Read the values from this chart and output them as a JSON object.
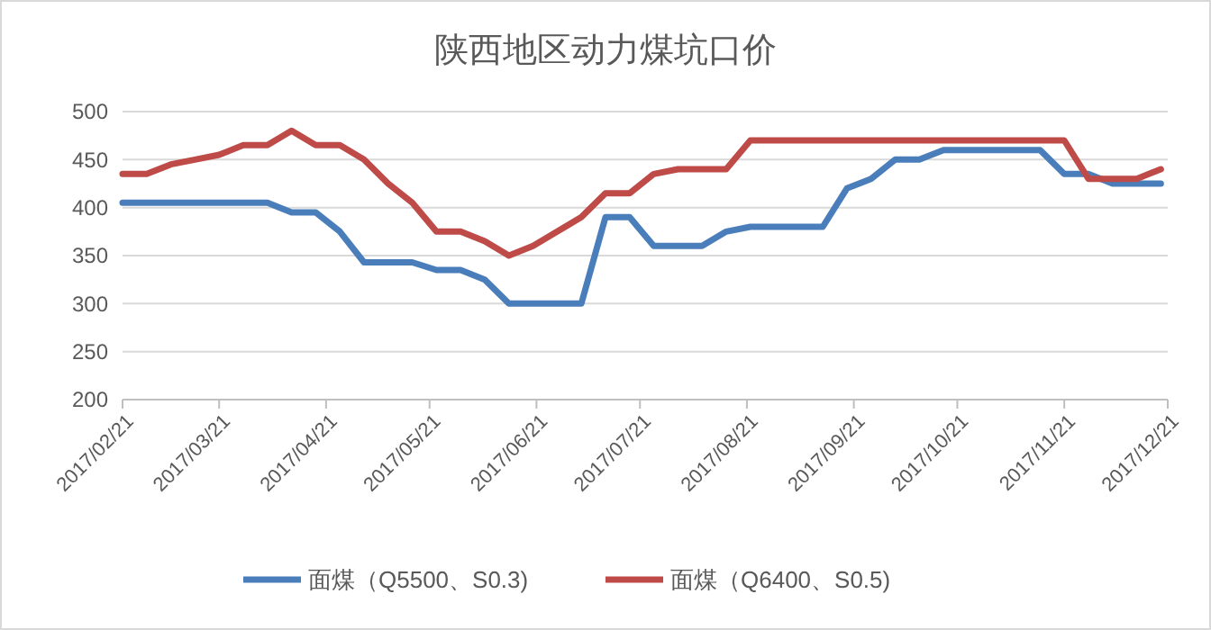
{
  "chart_data": {
    "type": "line",
    "title": "陕西地区动力煤坑口价",
    "x": [
      "2017-02-21",
      "2017-02-28",
      "2017-03-07",
      "2017-03-14",
      "2017-03-21",
      "2017-03-28",
      "2017-04-04",
      "2017-04-11",
      "2017-04-18",
      "2017-04-25",
      "2017-05-02",
      "2017-05-09",
      "2017-05-16",
      "2017-05-23",
      "2017-05-30",
      "2017-06-06",
      "2017-06-13",
      "2017-06-20",
      "2017-06-27",
      "2017-07-04",
      "2017-07-11",
      "2017-07-18",
      "2017-07-25",
      "2017-08-01",
      "2017-08-08",
      "2017-08-15",
      "2017-08-22",
      "2017-08-29",
      "2017-09-05",
      "2017-09-12",
      "2017-09-19",
      "2017-09-26",
      "2017-10-03",
      "2017-10-10",
      "2017-10-17",
      "2017-10-24",
      "2017-10-31",
      "2017-11-07",
      "2017-11-14",
      "2017-11-21",
      "2017-11-28",
      "2017-12-05",
      "2017-12-12",
      "2017-12-19"
    ],
    "series": [
      {
        "name": "面煤（Q5500、S0.3)",
        "color": "#4a7ebb",
        "values": [
          405,
          405,
          405,
          405,
          405,
          405,
          405,
          395,
          395,
          375,
          343,
          343,
          343,
          335,
          335,
          325,
          300,
          300,
          300,
          300,
          390,
          390,
          360,
          360,
          360,
          375,
          380,
          380,
          380,
          380,
          420,
          430,
          450,
          450,
          460,
          460,
          460,
          460,
          460,
          435,
          435,
          425,
          425,
          425
        ]
      },
      {
        "name": "面煤（Q6400、S0.5)",
        "color": "#be4b48",
        "values": [
          435,
          435,
          445,
          450,
          455,
          465,
          465,
          480,
          465,
          465,
          450,
          425,
          405,
          375,
          375,
          365,
          350,
          360,
          375,
          390,
          415,
          415,
          435,
          440,
          440,
          440,
          470,
          470,
          470,
          470,
          470,
          470,
          470,
          470,
          470,
          470,
          470,
          470,
          470,
          470,
          430,
          430,
          430,
          440
        ]
      }
    ],
    "xlim": [
      "2017-02-21",
      "2017-12-21"
    ],
    "xticks": [
      {
        "value": "2017-02-21",
        "label": "2017/02/21"
      },
      {
        "value": "2017-03-21",
        "label": "2017/03/21"
      },
      {
        "value": "2017-04-21",
        "label": "2017/04/21"
      },
      {
        "value": "2017-05-21",
        "label": "2017/05/21"
      },
      {
        "value": "2017-06-21",
        "label": "2017/06/21"
      },
      {
        "value": "2017-07-21",
        "label": "2017/07/21"
      },
      {
        "value": "2017-08-21",
        "label": "2017/08/21"
      },
      {
        "value": "2017-09-21",
        "label": "2017/09/21"
      },
      {
        "value": "2017-10-21",
        "label": "2017/10/21"
      },
      {
        "value": "2017-11-21",
        "label": "2017/11/21"
      },
      {
        "value": "2017-12-21",
        "label": "2017/12/21"
      }
    ],
    "ylim": [
      200,
      500
    ],
    "yticks": [
      200,
      250,
      300,
      350,
      400,
      450,
      500
    ],
    "grid": "y",
    "legend": "bottom",
    "marker": "none",
    "line_style": "solid"
  }
}
